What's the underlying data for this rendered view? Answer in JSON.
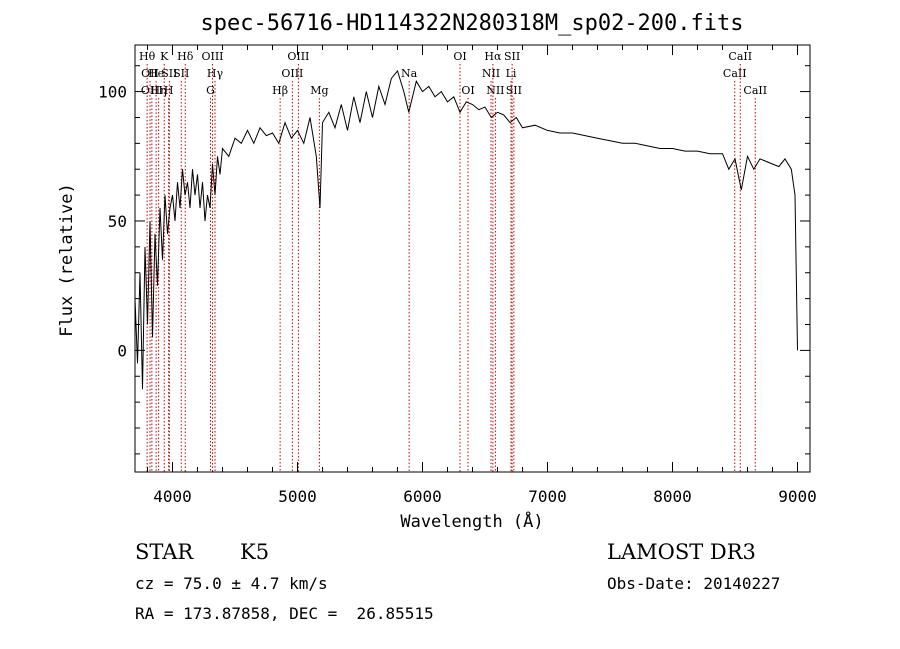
{
  "chart_data": {
    "type": "line",
    "title": "spec-56716-HD114322N280318M_sp02-200.fits",
    "xlabel": "Wavelength (Å)",
    "ylabel": "Flux (relative)",
    "xlim": [
      3700,
      9100
    ],
    "ylim": [
      -47,
      118
    ],
    "x_ticks": [
      4000,
      5000,
      6000,
      7000,
      8000,
      9000
    ],
    "x_tick_labels": [
      "4000",
      "5000",
      "6000",
      "7000",
      "8000",
      "9000"
    ],
    "y_ticks": [
      0,
      50,
      100
    ],
    "y_tick_labels": [
      "0",
      "50",
      "100"
    ],
    "grid": false,
    "line_color": "#000000",
    "marker_color": "#cc0000",
    "series": [
      {
        "name": "flux",
        "x": [
          3700,
          3720,
          3740,
          3760,
          3780,
          3800,
          3820,
          3840,
          3860,
          3880,
          3900,
          3920,
          3940,
          3960,
          3980,
          4000,
          4020,
          4040,
          4060,
          4080,
          4100,
          4120,
          4140,
          4160,
          4180,
          4200,
          4220,
          4240,
          4260,
          4280,
          4300,
          4320,
          4340,
          4360,
          4380,
          4400,
          4450,
          4500,
          4550,
          4600,
          4650,
          4700,
          4750,
          4800,
          4850,
          4900,
          4950,
          5000,
          5050,
          5100,
          5150,
          5180,
          5200,
          5250,
          5300,
          5350,
          5400,
          5450,
          5500,
          5550,
          5600,
          5650,
          5700,
          5750,
          5800,
          5850,
          5890,
          5950,
          6000,
          6050,
          6100,
          6150,
          6200,
          6250,
          6300,
          6350,
          6400,
          6450,
          6500,
          6550,
          6600,
          6650,
          6700,
          6750,
          6800,
          6900,
          7000,
          7100,
          7200,
          7300,
          7400,
          7500,
          7600,
          7700,
          7800,
          7900,
          8000,
          8100,
          8200,
          8300,
          8400,
          8450,
          8500,
          8550,
          8600,
          8650,
          8700,
          8750,
          8800,
          8850,
          8900,
          8950,
          8980,
          9000
        ],
        "values": [
          20,
          -5,
          30,
          -15,
          40,
          10,
          50,
          5,
          45,
          25,
          55,
          35,
          60,
          45,
          55,
          60,
          50,
          65,
          55,
          70,
          60,
          65,
          55,
          70,
          60,
          68,
          55,
          65,
          50,
          60,
          55,
          72,
          60,
          75,
          68,
          78,
          75,
          82,
          80,
          85,
          80,
          86,
          83,
          84,
          80,
          88,
          82,
          85,
          80,
          90,
          75,
          55,
          88,
          92,
          86,
          95,
          85,
          98,
          88,
          100,
          90,
          102,
          95,
          105,
          108,
          100,
          92,
          104,
          100,
          102,
          98,
          100,
          96,
          98,
          92,
          96,
          95,
          93,
          94,
          90,
          92,
          91,
          88,
          90,
          86,
          87,
          85,
          84,
          84,
          83,
          82,
          81,
          80,
          80,
          79,
          78,
          78,
          77,
          77,
          76,
          76,
          70,
          74,
          62,
          75,
          70,
          74,
          73,
          72,
          71,
          74,
          70,
          60,
          0
        ]
      }
    ],
    "spectral_lines": [
      {
        "w": 3797,
        "label": "Hθ",
        "row": 1
      },
      {
        "w": 3820,
        "label": "OII",
        "row": 2
      },
      {
        "w": 3835,
        "label": "OIII",
        "row": 3
      },
      {
        "w": 3869,
        "label": "He",
        "row": 2
      },
      {
        "w": 3889,
        "label": "Hη",
        "row": 3
      },
      {
        "w": 3934,
        "label": "K",
        "row": 1
      },
      {
        "w": 3969,
        "label": "H",
        "row": 3
      },
      {
        "w": 3975,
        "label": "SII",
        "row": 2
      },
      {
        "w": 4102,
        "label": "Hδ",
        "row": 1
      },
      {
        "w": 4070,
        "label": "SII",
        "row": 2
      },
      {
        "w": 4320,
        "label": "OIII",
        "row": 1
      },
      {
        "w": 4340,
        "label": "Hγ",
        "row": 2
      },
      {
        "w": 4304,
        "label": "G",
        "row": 3
      },
      {
        "w": 4861,
        "label": "Hβ",
        "row": 3
      },
      {
        "w": 4959,
        "label": "OIII",
        "row": 2
      },
      {
        "w": 5007,
        "label": "OIII",
        "row": 1
      },
      {
        "w": 5175,
        "label": "Mg",
        "row": 3
      },
      {
        "w": 5893,
        "label": "Na",
        "row": 2
      },
      {
        "w": 6300,
        "label": "OI",
        "row": 1
      },
      {
        "w": 6364,
        "label": "OI",
        "row": 3
      },
      {
        "w": 6548,
        "label": "NII",
        "row": 2
      },
      {
        "w": 6563,
        "label": "Hα",
        "row": 1
      },
      {
        "w": 6583,
        "label": "NII",
        "row": 3
      },
      {
        "w": 6708,
        "label": "Li",
        "row": 2
      },
      {
        "w": 6717,
        "label": "SII",
        "row": 1
      },
      {
        "w": 6731,
        "label": "SII",
        "row": 3
      },
      {
        "w": 8498,
        "label": "CaII",
        "row": 2
      },
      {
        "w": 8542,
        "label": "CaII",
        "row": 1
      },
      {
        "w": 8662,
        "label": "CaII",
        "row": 3
      }
    ]
  },
  "info": {
    "class": "STAR",
    "subclass": "K5",
    "survey": "LAMOST DR3",
    "cz": "cz = 75.0 ± 4.7 km/s",
    "obs_date": "Obs-Date: 20140227",
    "radec": "RA = 173.87858, DEC =  26.85515"
  }
}
